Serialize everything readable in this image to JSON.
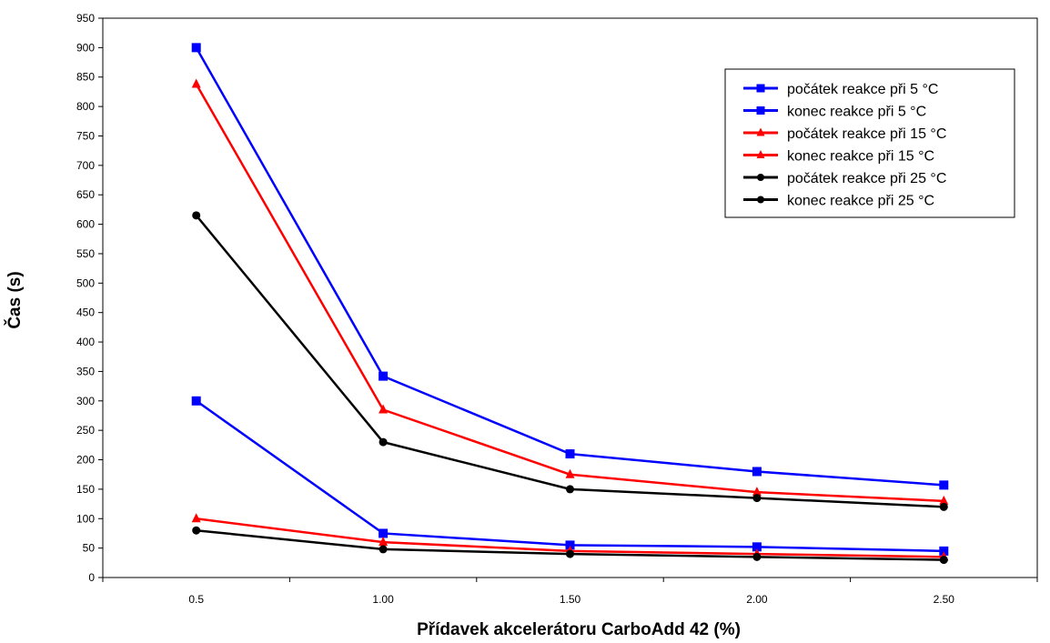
{
  "chart_data": {
    "type": "line",
    "title": "",
    "xlabel": "Přídavek akcelerátoru CarboAdd 42 (%)",
    "ylabel": "Čas (s)",
    "categories": [
      "0.5",
      "1.00",
      "1.50",
      "2.00",
      "2.50"
    ],
    "ylim": [
      0,
      950
    ],
    "yticks": [
      "0",
      "50",
      "100",
      "150",
      "200",
      "250",
      "300",
      "350",
      "400",
      "450",
      "500",
      "550",
      "600",
      "650",
      "700",
      "750",
      "800",
      "850",
      "900",
      "950"
    ],
    "grid": false,
    "legend_position": "top-right",
    "series": [
      {
        "name": "počátek reakce při 5 °C",
        "color": "#0000ff",
        "marker": "square",
        "values": [
          300,
          75,
          55,
          52,
          45
        ]
      },
      {
        "name": "konec reakce při 5 °C",
        "color": "#0000ff",
        "marker": "square",
        "values": [
          900,
          342,
          210,
          180,
          157
        ]
      },
      {
        "name": "počátek reakce při 15 °C",
        "color": "#ff0000",
        "marker": "triangle",
        "values": [
          100,
          60,
          45,
          40,
          35
        ]
      },
      {
        "name": "konec reakce při 15 °C",
        "color": "#ff0000",
        "marker": "triangle",
        "values": [
          838,
          285,
          175,
          145,
          130
        ]
      },
      {
        "name": "počátek reakce při 25 °C",
        "color": "#000000",
        "marker": "circle",
        "values": [
          80,
          48,
          40,
          35,
          30
        ]
      },
      {
        "name": "konec reakce při 25 °C",
        "color": "#000000",
        "marker": "circle",
        "values": [
          615,
          230,
          150,
          135,
          120
        ]
      }
    ]
  }
}
